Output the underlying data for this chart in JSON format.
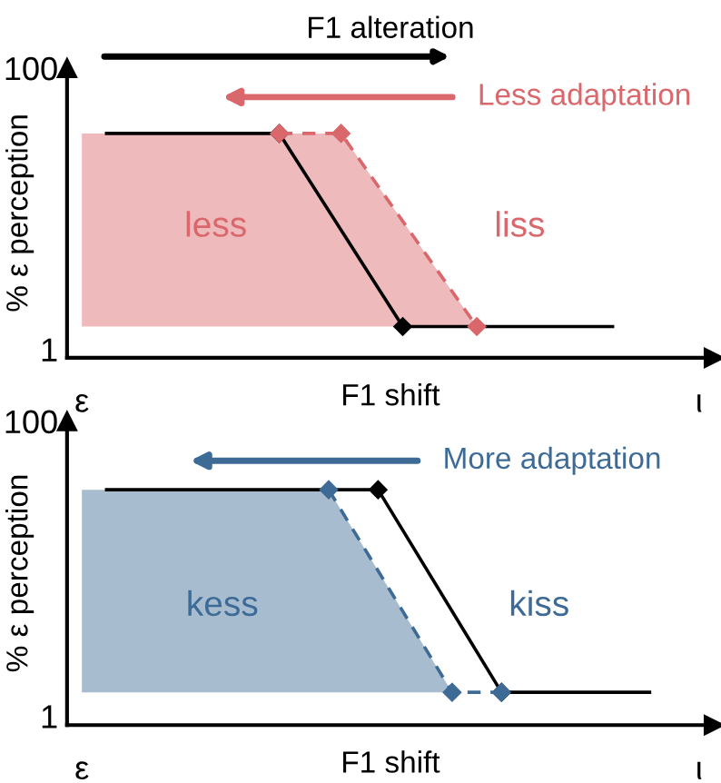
{
  "chart_data": [
    {
      "type": "line",
      "title": "F1 alteration",
      "xlabel": "F1 shift",
      "ylabel": "% ε perception",
      "categories": [
        "ε",
        null,
        null,
        null,
        null,
        null,
        null,
        null,
        null,
        null,
        null,
        null,
        null,
        null,
        null,
        null,
        null,
        null,
        null,
        null,
        null,
        null,
        null,
        null,
        null,
        null,
        null,
        null,
        null,
        null,
        null,
        null,
        null,
        null,
        null,
        null,
        null,
        null,
        null,
        null,
        null,
        null,
        null,
        null,
        null,
        null,
        null,
        null,
        null,
        null,
        "ι"
      ],
      "ylim": [
        -2,
        100
      ],
      "yticks": [
        1,
        100
      ],
      "grid": false,
      "marker": "diamond",
      "series": [
        {
          "color": "#000000",
          "line_style": "solid",
          "values": [
            null,
            null,
            77,
            null,
            null,
            null,
            null,
            null,
            null,
            null,
            null,
            null,
            null,
            null,
            null,
            null,
            77,
            null,
            null,
            null,
            null,
            null,
            null,
            null,
            null,
            null,
            9,
            null,
            null,
            null,
            null,
            null,
            null,
            null,
            null,
            null,
            null,
            null,
            null,
            null,
            null,
            null,
            null,
            9,
            null,
            null,
            null,
            null,
            null,
            null,
            null
          ]
        },
        {
          "color": "#d9676b",
          "line_style": "dashed",
          "values": [
            null,
            null,
            null,
            null,
            null,
            null,
            null,
            null,
            null,
            null,
            null,
            null,
            null,
            null,
            null,
            null,
            77,
            null,
            null,
            null,
            null,
            77,
            null,
            null,
            null,
            null,
            null,
            null,
            null,
            null,
            null,
            null,
            9,
            null,
            null,
            null,
            null,
            null,
            null,
            null,
            null,
            null,
            null,
            null,
            null,
            null,
            null,
            null,
            null,
            null,
            null
          ]
        }
      ],
      "annotations": [
        "less",
        "liss",
        "Less adaptation"
      ]
    },
    {
      "type": "line",
      "xlabel": "F1 shift",
      "ylabel": "% ε perception",
      "categories": [
        "ε",
        null,
        null,
        null,
        null,
        null,
        null,
        null,
        null,
        null,
        null,
        null,
        null,
        null,
        null,
        null,
        null,
        null,
        null,
        null,
        null,
        null,
        null,
        null,
        null,
        null,
        null,
        null,
        null,
        null,
        null,
        null,
        null,
        null,
        null,
        null,
        null,
        null,
        null,
        null,
        null,
        null,
        null,
        null,
        null,
        null,
        null,
        null,
        null,
        null,
        "ι"
      ],
      "ylim": [
        -2,
        100
      ],
      "yticks": [
        1,
        100
      ],
      "grid": false,
      "marker": "diamond",
      "series": [
        {
          "color": "#000000",
          "line_style": "solid",
          "values": [
            null,
            null,
            77,
            null,
            null,
            null,
            null,
            null,
            null,
            null,
            null,
            null,
            null,
            null,
            null,
            null,
            null,
            null,
            null,
            null,
            null,
            null,
            null,
            null,
            77,
            null,
            null,
            null,
            null,
            null,
            null,
            null,
            null,
            null,
            9,
            null,
            null,
            null,
            null,
            null,
            null,
            null,
            null,
            null,
            null,
            null,
            9,
            null,
            null,
            null,
            null
          ]
        },
        {
          "color": "#3d6b96",
          "line_style": "dashed",
          "values": [
            null,
            null,
            null,
            null,
            null,
            null,
            null,
            null,
            null,
            null,
            null,
            null,
            null,
            null,
            null,
            null,
            null,
            null,
            null,
            null,
            77,
            null,
            null,
            null,
            null,
            null,
            null,
            null,
            null,
            null,
            9,
            null,
            null,
            null,
            9,
            null,
            null,
            null,
            null,
            null,
            null,
            null,
            null,
            null,
            null,
            null,
            null,
            null,
            null,
            null,
            null
          ]
        }
      ],
      "annotations": [
        "kess",
        "kiss",
        "More adaptation"
      ]
    }
  ]
}
